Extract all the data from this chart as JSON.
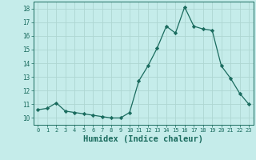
{
  "x": [
    0,
    1,
    2,
    3,
    4,
    5,
    6,
    7,
    8,
    9,
    10,
    11,
    12,
    13,
    14,
    15,
    16,
    17,
    18,
    19,
    20,
    21,
    22,
    23
  ],
  "y": [
    10.6,
    10.7,
    11.1,
    10.5,
    10.4,
    10.3,
    10.2,
    10.1,
    10.0,
    10.0,
    10.4,
    12.7,
    13.8,
    15.1,
    16.7,
    16.2,
    18.1,
    16.7,
    16.5,
    16.4,
    13.8,
    12.9,
    11.8,
    11.0
  ],
  "line_color": "#1a6b5e",
  "marker": "D",
  "marker_size": 2.2,
  "bg_color": "#c5ecea",
  "grid_color": "#aed6d2",
  "tick_color": "#1a6b5e",
  "xlabel": "Humidex (Indice chaleur)",
  "xlabel_fontsize": 7.5,
  "ylabel_ticks": [
    10,
    11,
    12,
    13,
    14,
    15,
    16,
    17,
    18
  ],
  "xlim": [
    -0.5,
    23.5
  ],
  "ylim": [
    9.5,
    18.5
  ],
  "xticks": [
    0,
    1,
    2,
    3,
    4,
    5,
    6,
    7,
    8,
    9,
    10,
    11,
    12,
    13,
    14,
    15,
    16,
    17,
    18,
    19,
    20,
    21,
    22,
    23
  ]
}
